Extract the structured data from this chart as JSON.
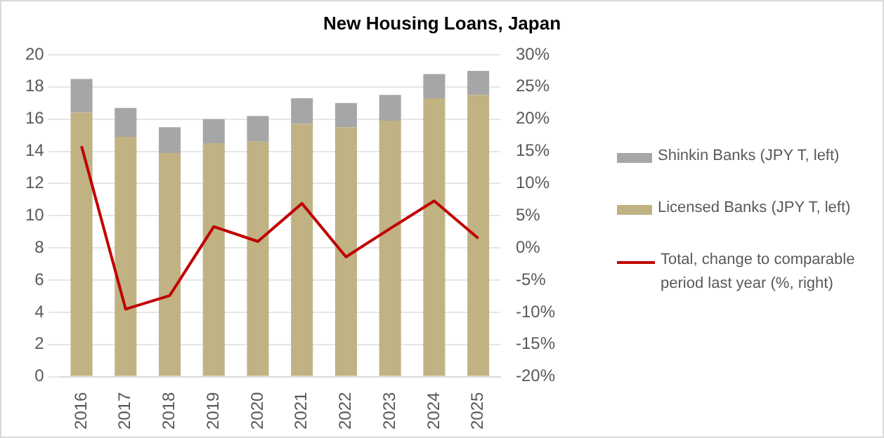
{
  "chart_data": {
    "type": "bar",
    "title": "New Housing Loans, Japan",
    "stacked": true,
    "categories": [
      "2016",
      "2017",
      "2018",
      "2019",
      "2020",
      "2021",
      "2022",
      "2023",
      "2024",
      "2025"
    ],
    "series": [
      {
        "name": "Licensed Banks (JPY T, left)",
        "color": "#c0b283",
        "values": [
          16.4,
          14.9,
          13.9,
          14.5,
          14.6,
          15.7,
          15.5,
          15.9,
          17.3,
          17.5
        ]
      },
      {
        "name": "Shinkin Banks (JPY T, left)",
        "color": "#a6a6a6",
        "values": [
          2.1,
          1.8,
          1.6,
          1.5,
          1.6,
          1.6,
          1.5,
          1.6,
          1.5,
          1.5
        ]
      },
      {
        "name": "Total, change to comparable period last year (%, right)",
        "type": "line",
        "axis": "y2",
        "color": "#c00000",
        "line_style": "solid",
        "marker": "none",
        "values": [
          15.8,
          -9.5,
          -7.4,
          3.3,
          1.0,
          6.9,
          -1.4,
          3.0,
          7.3,
          1.5
        ]
      }
    ],
    "ylim": [
      0,
      20
    ],
    "yticks": [
      0,
      2,
      4,
      6,
      8,
      10,
      12,
      14,
      16,
      18,
      20
    ],
    "y2lim": [
      -20,
      30
    ],
    "y2ticks": [
      {
        "value": -20,
        "label": "-20%"
      },
      {
        "value": -15,
        "label": "-15%"
      },
      {
        "value": -10,
        "label": "-10%"
      },
      {
        "value": -5,
        "label": "-5%"
      },
      {
        "value": 0,
        "label": "0%"
      },
      {
        "value": 5,
        "label": "5%"
      },
      {
        "value": 10,
        "label": "10%"
      },
      {
        "value": 15,
        "label": "15%"
      },
      {
        "value": 20,
        "label": "20%"
      },
      {
        "value": 25,
        "label": "25%"
      },
      {
        "value": 30,
        "label": "30%"
      }
    ],
    "grid": "y",
    "legend": "right"
  }
}
